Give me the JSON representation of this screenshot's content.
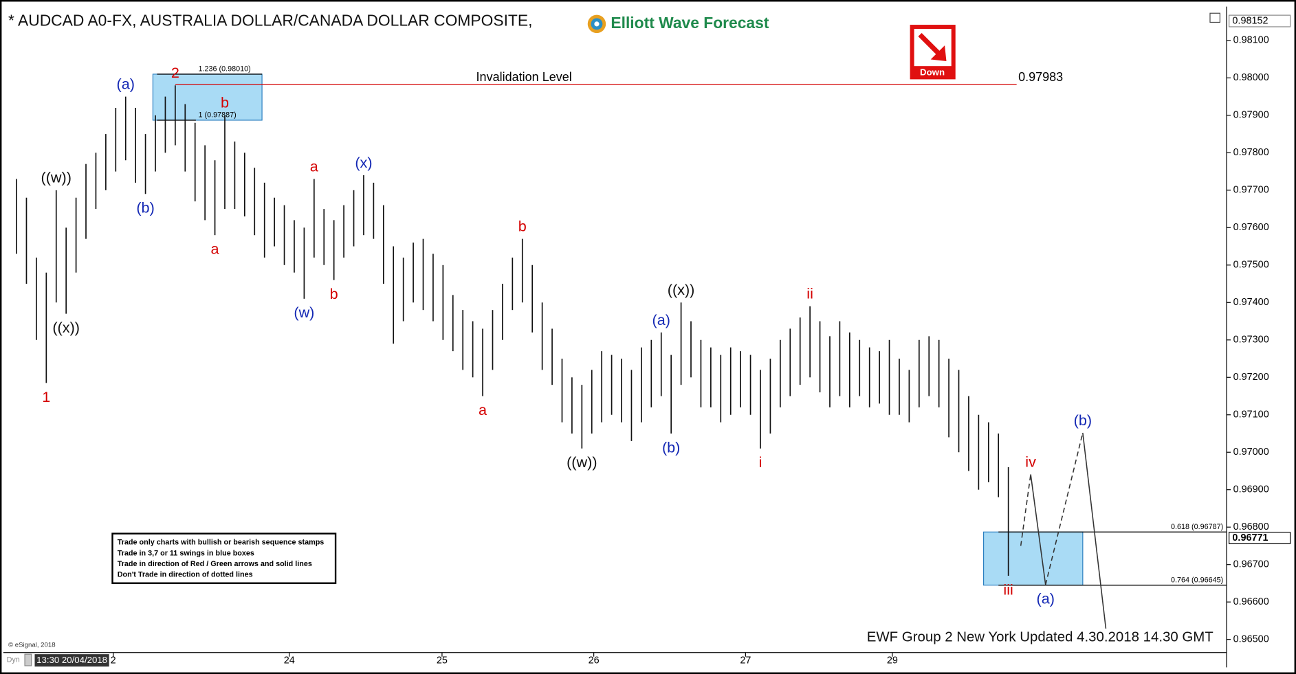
{
  "chart_data": {
    "type": "ohlc",
    "title": "* AUDCAD A0-FX, AUSTRALIA DOLLAR/CANADA DOLLAR COMPOSITE,",
    "brand": "Elliott Wave Forecast",
    "signal": "Down",
    "footer": "EWF Group 2 New York Updated 4.30.2018 14.30 GMT",
    "copyright": "© eSignal, 2018",
    "cursor_time": "13:30 20/04/2018",
    "mode": "Dyn",
    "rules": [
      "Trade only charts with bullish or bearish sequence stamps",
      "Trade in 3,7 or 11 swings in blue boxes",
      "Trade in direction of Red / Green arrows and solid lines",
      "Don't Trade in direction of dotted lines"
    ],
    "xlim": [
      -1,
      122
    ],
    "ylim": [
      0.96465,
      0.98186
    ],
    "xticks": [
      {
        "value": 9.75,
        "label": "2"
      },
      {
        "value": 27.5,
        "label": "24"
      },
      {
        "value": 42.9,
        "label": "25"
      },
      {
        "value": 58.2,
        "label": "26"
      },
      {
        "value": 73.5,
        "label": "27"
      },
      {
        "value": 88.3,
        "label": "29"
      }
    ],
    "yticks": [
      {
        "value": 0.965,
        "label": "0.96500"
      },
      {
        "value": 0.966,
        "label": "0.96600"
      },
      {
        "value": 0.967,
        "label": "0.96700"
      },
      {
        "value": 0.968,
        "label": "0.96800"
      },
      {
        "value": 0.969,
        "label": "0.96900"
      },
      {
        "value": 0.97,
        "label": "0.97000"
      },
      {
        "value": 0.971,
        "label": "0.97100"
      },
      {
        "value": 0.972,
        "label": "0.97200"
      },
      {
        "value": 0.973,
        "label": "0.97300"
      },
      {
        "value": 0.974,
        "label": "0.97400"
      },
      {
        "value": 0.975,
        "label": "0.97500"
      },
      {
        "value": 0.976,
        "label": "0.97600"
      },
      {
        "value": 0.977,
        "label": "0.97700"
      },
      {
        "value": 0.978,
        "label": "0.97800"
      },
      {
        "value": 0.979,
        "label": "0.97900"
      },
      {
        "value": 0.98,
        "label": "0.98000"
      },
      {
        "value": 0.981,
        "label": "0.98100"
      }
    ],
    "top_price": 0.98152,
    "last_price": 0.96771,
    "highs": [
      0.9773,
      0.9768,
      0.9752,
      0.9748,
      0.977,
      0.976,
      0.9768,
      0.9777,
      0.978,
      0.9785,
      0.9792,
      0.9795,
      0.9792,
      0.9785,
      0.979,
      0.9795,
      0.9798,
      0.9793,
      0.9788,
      0.9782,
      0.9778,
      0.979,
      0.9783,
      0.978,
      0.9776,
      0.9772,
      0.9768,
      0.9766,
      0.9762,
      0.976,
      0.9773,
      0.9765,
      0.9762,
      0.9766,
      0.977,
      0.9774,
      0.9772,
      0.9766,
      0.9755,
      0.9752,
      0.9756,
      0.9757,
      0.9753,
      0.975,
      0.9742,
      0.9738,
      0.9735,
      0.9733,
      0.9738,
      0.9745,
      0.9752,
      0.9757,
      0.975,
      0.974,
      0.9733,
      0.9725,
      0.972,
      0.9718,
      0.9722,
      0.9727,
      0.9726,
      0.9725,
      0.9722,
      0.9728,
      0.973,
      0.9732,
      0.9726,
      0.974,
      0.9735,
      0.973,
      0.9728,
      0.9726,
      0.9728,
      0.9727,
      0.9726,
      0.9722,
      0.9725,
      0.973,
      0.9733,
      0.9736,
      0.9739,
      0.9735,
      0.9731,
      0.9735,
      0.9732,
      0.973,
      0.9728,
      0.9727,
      0.973,
      0.9725,
      0.9722,
      0.973,
      0.9731,
      0.973,
      0.9725,
      0.9722,
      0.9715,
      0.971,
      0.9708,
      0.9705,
      0.9696
    ],
    "lows": [
      0.9753,
      0.9745,
      0.973,
      0.97185,
      0.974,
      0.9737,
      0.9748,
      0.9757,
      0.9765,
      0.977,
      0.9775,
      0.9778,
      0.9772,
      0.9769,
      0.9775,
      0.978,
      0.9782,
      0.9775,
      0.9767,
      0.9762,
      0.9758,
      0.9765,
      0.9765,
      0.9763,
      0.9758,
      0.9752,
      0.9755,
      0.975,
      0.9748,
      0.9741,
      0.9752,
      0.975,
      0.9746,
      0.9752,
      0.9755,
      0.9758,
      0.9757,
      0.9745,
      0.9729,
      0.9735,
      0.974,
      0.9738,
      0.9735,
      0.973,
      0.9727,
      0.9722,
      0.972,
      0.9715,
      0.9722,
      0.973,
      0.9738,
      0.974,
      0.9732,
      0.9722,
      0.9718,
      0.9708,
      0.9705,
      0.9701,
      0.9705,
      0.9708,
      0.971,
      0.9708,
      0.9703,
      0.9708,
      0.9712,
      0.9715,
      0.9705,
      0.9718,
      0.972,
      0.9712,
      0.9712,
      0.9708,
      0.971,
      0.9712,
      0.971,
      0.9701,
      0.9705,
      0.9712,
      0.9715,
      0.9718,
      0.972,
      0.9716,
      0.9712,
      0.9715,
      0.9712,
      0.9715,
      0.9712,
      0.9713,
      0.971,
      0.971,
      0.9708,
      0.9712,
      0.9715,
      0.9712,
      0.9704,
      0.97,
      0.9695,
      0.969,
      0.9692,
      0.9688,
      0.9667
    ],
    "invalidation": {
      "label": "Invalidation Level",
      "value": 0.97983
    },
    "boxes": [
      {
        "x": [
          13.75,
          24.75
        ],
        "levels": [
          {
            "value": 0.9801,
            "label": "1.236 (0.98010)"
          },
          {
            "value": 0.97887,
            "label": "1 (0.97887)"
          }
        ]
      },
      {
        "x": [
          97.5,
          107.5
        ],
        "levels": [
          {
            "value": 0.96787,
            "label": "0.618 (0.96787)"
          },
          {
            "value": 0.96645,
            "label": "0.764 (0.96645)"
          }
        ]
      }
    ],
    "projection": {
      "x": [
        101.25,
        102.25,
        103.75,
        107.5,
        109.83
      ],
      "y": [
        0.9675,
        0.96941,
        0.96646,
        0.97052,
        0.96529
      ]
    },
    "waves": [
      {
        "text": "1",
        "color": "#d40000",
        "bar": 3,
        "side": "low"
      },
      {
        "text": "((w))",
        "color": "#111111",
        "bar": 4,
        "side": "high"
      },
      {
        "text": "((x))",
        "color": "#111111",
        "bar": 5,
        "side": "low"
      },
      {
        "text": "(a)",
        "color": "#1428b4",
        "bar": 11,
        "side": "high"
      },
      {
        "text": "(b)",
        "color": "#1428b4",
        "bar": 13,
        "side": "low"
      },
      {
        "text": "2",
        "color": "#d40000",
        "bar": 16,
        "side": "high"
      },
      {
        "text": "a",
        "color": "#d40000",
        "bar": 20,
        "side": "low"
      },
      {
        "text": "b",
        "color": "#d40000",
        "bar": 21,
        "side": "high"
      },
      {
        "text": "(w)",
        "color": "#1428b4",
        "bar": 29,
        "side": "low"
      },
      {
        "text": "a",
        "color": "#d40000",
        "bar": 30,
        "side": "high"
      },
      {
        "text": "b",
        "color": "#d40000",
        "bar": 32,
        "side": "low"
      },
      {
        "text": "(x)",
        "color": "#1428b4",
        "bar": 35,
        "side": "high"
      },
      {
        "text": "a",
        "color": "#d40000",
        "bar": 47,
        "side": "low"
      },
      {
        "text": "b",
        "color": "#d40000",
        "bar": 51,
        "side": "high"
      },
      {
        "text": "((w))",
        "color": "#111111",
        "bar": 57,
        "side": "low"
      },
      {
        "text": "(a)",
        "color": "#1428b4",
        "bar": 65,
        "side": "high"
      },
      {
        "text": "(b)",
        "color": "#1428b4",
        "bar": 66,
        "side": "low"
      },
      {
        "text": "((x))",
        "color": "#111111",
        "bar": 67,
        "side": "high"
      },
      {
        "text": "i",
        "color": "#d40000",
        "bar": 75,
        "side": "low"
      },
      {
        "text": "ii",
        "color": "#d40000",
        "bar": 80,
        "side": "high"
      },
      {
        "text": "iii",
        "color": "#d40000",
        "bar": 100,
        "side": "low"
      },
      {
        "text": "iv",
        "color": "#d40000",
        "point": 1,
        "side": "high"
      },
      {
        "text": "(a)",
        "color": "#1428b4",
        "point": 2,
        "side": "low"
      },
      {
        "text": "(b)",
        "color": "#1428b4",
        "point": 3,
        "side": "high"
      }
    ]
  }
}
